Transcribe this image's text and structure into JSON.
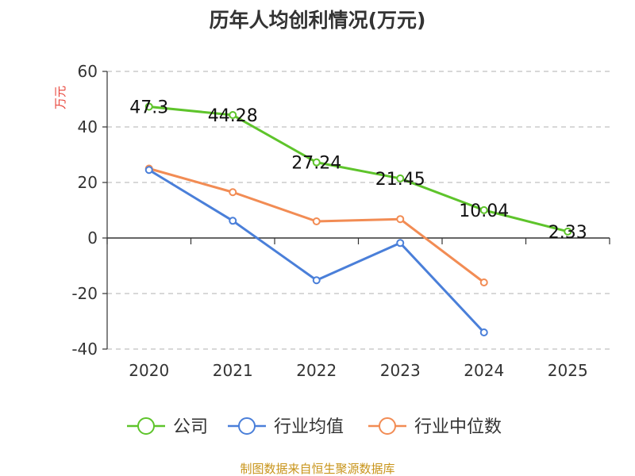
{
  "chart_data": {
    "type": "line",
    "title": "历年人均创利情况(万元)",
    "ylabel": "万元",
    "categories": [
      "2020",
      "2021",
      "2022",
      "2023",
      "2024",
      "2025"
    ],
    "ylim": [
      -40,
      60
    ],
    "yticks": [
      60,
      40,
      20,
      0,
      -20,
      -40
    ],
    "series": [
      {
        "name": "公司",
        "color": "#5ec42b",
        "values": [
          47.3,
          44.28,
          27.24,
          21.45,
          10.04,
          2.33
        ],
        "labels": [
          "47.3",
          "44.28",
          "27.24",
          "21.45",
          "10.04",
          "2.33"
        ]
      },
      {
        "name": "行业均值",
        "color": "#4a7fd9",
        "values": [
          24.5,
          6.2,
          -15.2,
          -1.8,
          -34.0,
          null
        ]
      },
      {
        "name": "行业中位数",
        "color": "#f28c54",
        "values": [
          25.0,
          16.5,
          6.0,
          6.8,
          -16.0,
          null
        ]
      }
    ],
    "legend_position": "bottom",
    "grid": true
  },
  "source": "制图数据来自恒生聚源数据库"
}
